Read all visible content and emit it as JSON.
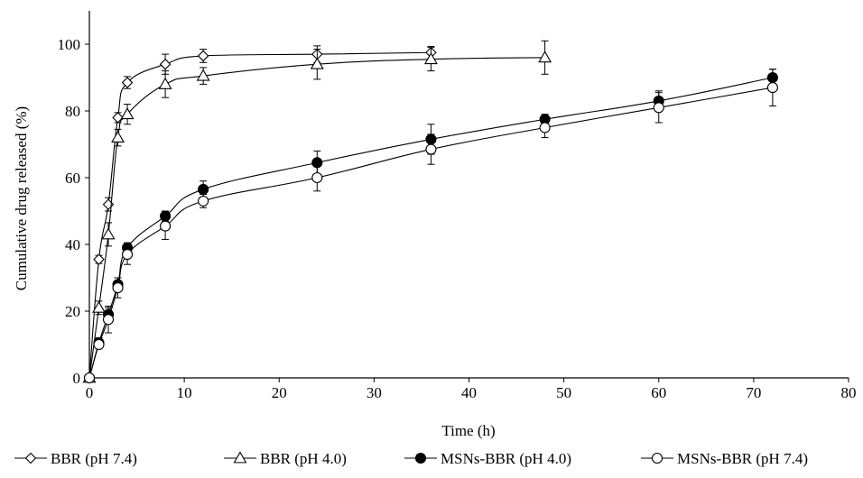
{
  "chart_data": {
    "type": "line",
    "xlabel": "Time (h)",
    "ylabel": "Cumulative drug released (%)",
    "xlim": [
      0,
      80
    ],
    "ylim": [
      0,
      110
    ],
    "xticks": [
      0,
      10,
      20,
      30,
      40,
      50,
      60,
      70,
      80
    ],
    "yticks": [
      0,
      20,
      40,
      60,
      80,
      100
    ],
    "grid": false,
    "legend_position": "bottom",
    "series": [
      {
        "name": "BBR (pH 7.4)",
        "marker": "diamond-open",
        "x": [
          0,
          1,
          2,
          3,
          4,
          8,
          12,
          24,
          36
        ],
        "y": [
          0,
          35.5,
          52,
          78,
          88.5,
          94,
          96.5,
          97,
          97.5
        ],
        "err": [
          0,
          1.2,
          2,
          1.5,
          1.8,
          3,
          2,
          2.5,
          1.8
        ]
      },
      {
        "name": "BBR (pH 4.0)",
        "marker": "triangle-open",
        "x": [
          0,
          1,
          2,
          3,
          4,
          8,
          12,
          24,
          36,
          48
        ],
        "y": [
          0,
          21,
          43,
          72,
          79,
          88,
          90.5,
          94,
          95.5,
          96
        ],
        "err": [
          0,
          2,
          3.5,
          2.5,
          3,
          4,
          2.5,
          4.5,
          3.5,
          5
        ]
      },
      {
        "name": "MSNs-BBR (pH 4.0)",
        "marker": "circle-filled",
        "x": [
          0,
          1,
          2,
          3,
          4,
          8,
          12,
          24,
          36,
          48,
          60,
          72
        ],
        "y": [
          0,
          10.5,
          19,
          28,
          39,
          48.5,
          56.5,
          64.5,
          71.5,
          77.5,
          83,
          90
        ],
        "err": [
          0,
          1.5,
          2,
          2,
          1.5,
          1.5,
          2.5,
          3.5,
          4.5,
          1.5,
          3,
          2.5
        ]
      },
      {
        "name": "MSNs-BBR (pH 7.4)",
        "marker": "circle-open",
        "x": [
          0,
          1,
          2,
          3,
          4,
          8,
          12,
          24,
          36,
          48,
          60,
          72
        ],
        "y": [
          0,
          10,
          17.5,
          27,
          37,
          45.5,
          53,
          60,
          68.5,
          75,
          81,
          87
        ],
        "err": [
          0,
          1,
          4,
          3,
          3,
          4,
          2,
          4,
          4.5,
          3,
          4.5,
          5.5
        ]
      }
    ]
  }
}
